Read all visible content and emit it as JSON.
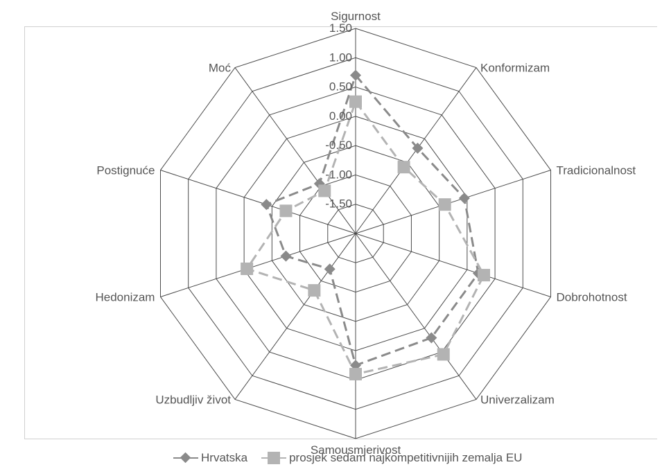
{
  "chart_data": {
    "type": "radar",
    "axes": [
      "Sigurnost",
      "Konformizam",
      "Tradicionalnost",
      "Dobrohotnost",
      "Univerzalizam",
      "Samousmjerivost",
      "Uzbudljiv život",
      "Hedonizam",
      "Postignuće",
      "Moć"
    ],
    "ticks": [
      "1.50",
      "1.00",
      "0.50",
      "0.00",
      "-0.50",
      "-1.00",
      "-1.50"
    ],
    "tick_values": [
      1.5,
      1.0,
      0.5,
      0.0,
      -0.5,
      -1.0,
      -1.5
    ],
    "range": [
      -2.0,
      1.5
    ],
    "series": [
      {
        "name": "Hrvatska",
        "marker": "diamond",
        "color": "#8a8a8a",
        "values": [
          0.7,
          -0.2,
          -0.05,
          0.2,
          0.2,
          0.25,
          -1.25,
          -0.75,
          -0.4,
          -0.95
        ]
      },
      {
        "name": "prosjek sedam najkompetitivnijih zemalja EU",
        "marker": "square",
        "color": "#b3b3b3",
        "values": [
          0.25,
          -0.6,
          -0.4,
          0.3,
          0.55,
          0.4,
          -0.8,
          -0.05,
          -0.75,
          -1.1
        ]
      }
    ],
    "legend_position": "bottom"
  },
  "legend": {
    "hr": "Hrvatska",
    "eu": "prosjek sedam najkompetitivnijih zemalja EU"
  }
}
